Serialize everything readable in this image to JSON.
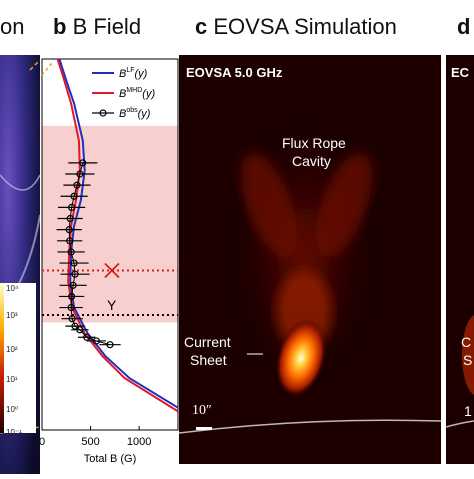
{
  "headers": {
    "a": {
      "letter": "",
      "title": "on"
    },
    "b": {
      "letter": "b",
      "title": "B Field"
    },
    "c": {
      "letter": "c",
      "title": "EOVSA Simulation"
    },
    "d": {
      "letter": "d",
      "title": ""
    }
  },
  "panel_a": {
    "colorbar_ticks": [
      "10⁴",
      "10³",
      "10²",
      "10¹",
      "10⁰",
      "10⁻¹"
    ]
  },
  "panel_c": {
    "freq_label": "EOVSA 5.0 GHz",
    "cavity_label_1": "Flux Rope",
    "cavity_label_2": "Cavity",
    "sheet_label_1": "Current",
    "sheet_label_2": "Sheet",
    "scale_label": "10″"
  },
  "panel_d": {
    "freq_label": "EC",
    "label_1": "C",
    "label_2": "S",
    "scale_label": "1"
  },
  "colors": {
    "lf": "#1f2fbf",
    "mhd": "#e0182a",
    "obs": "#000000",
    "shade": "#f8cfcf",
    "x_line": "#d42020",
    "y_line": "#000000"
  },
  "chart_data": {
    "type": "line",
    "xlabel": "Total B (G)",
    "xticks": [
      0,
      500,
      1000
    ],
    "xlim": [
      0,
      1400
    ],
    "ylim": [
      0,
      1
    ],
    "y_axis_labels": "none",
    "legend": [
      "B^LF(y)",
      "B^MHD(y)",
      "B^obs(y)"
    ],
    "legend_position": "top-right",
    "shaded_region_y": [
      0.29,
      0.82
    ],
    "x_marker": {
      "label": "X",
      "y": 0.43,
      "B": 720
    },
    "y_marker": {
      "label": "Y",
      "y": 0.31,
      "B": 720
    },
    "series": [
      {
        "name": "B^LF(y)",
        "x": [
          180,
          240,
          330,
          420,
          440,
          400,
          330,
          300,
          290,
          330,
          470,
          650,
          900,
          1400
        ],
        "y": [
          1.0,
          0.95,
          0.88,
          0.78,
          0.7,
          0.62,
          0.55,
          0.48,
          0.4,
          0.33,
          0.26,
          0.2,
          0.14,
          0.06
        ]
      },
      {
        "name": "B^MHD(y)",
        "x": [
          160,
          220,
          300,
          380,
          390,
          350,
          300,
          280,
          270,
          310,
          440,
          620,
          850,
          1400
        ],
        "y": [
          1.0,
          0.95,
          0.88,
          0.78,
          0.7,
          0.62,
          0.55,
          0.48,
          0.4,
          0.33,
          0.26,
          0.2,
          0.14,
          0.05
        ]
      },
      {
        "name": "B^obs(y)",
        "x": [
          420,
          390,
          360,
          330,
          305,
          290,
          280,
          285,
          300,
          330,
          340,
          320,
          305,
          300,
          310,
          340,
          390,
          460,
          560,
          700
        ],
        "y": [
          0.72,
          0.69,
          0.66,
          0.63,
          0.6,
          0.57,
          0.54,
          0.51,
          0.48,
          0.45,
          0.42,
          0.39,
          0.36,
          0.33,
          0.3,
          0.28,
          0.27,
          0.25,
          0.24,
          0.23
        ],
        "xerr": [
          150,
          150,
          140,
          140,
          140,
          130,
          130,
          130,
          140,
          150,
          150,
          140,
          130,
          120,
          110,
          100,
          90,
          90,
          100,
          110
        ]
      }
    ]
  }
}
